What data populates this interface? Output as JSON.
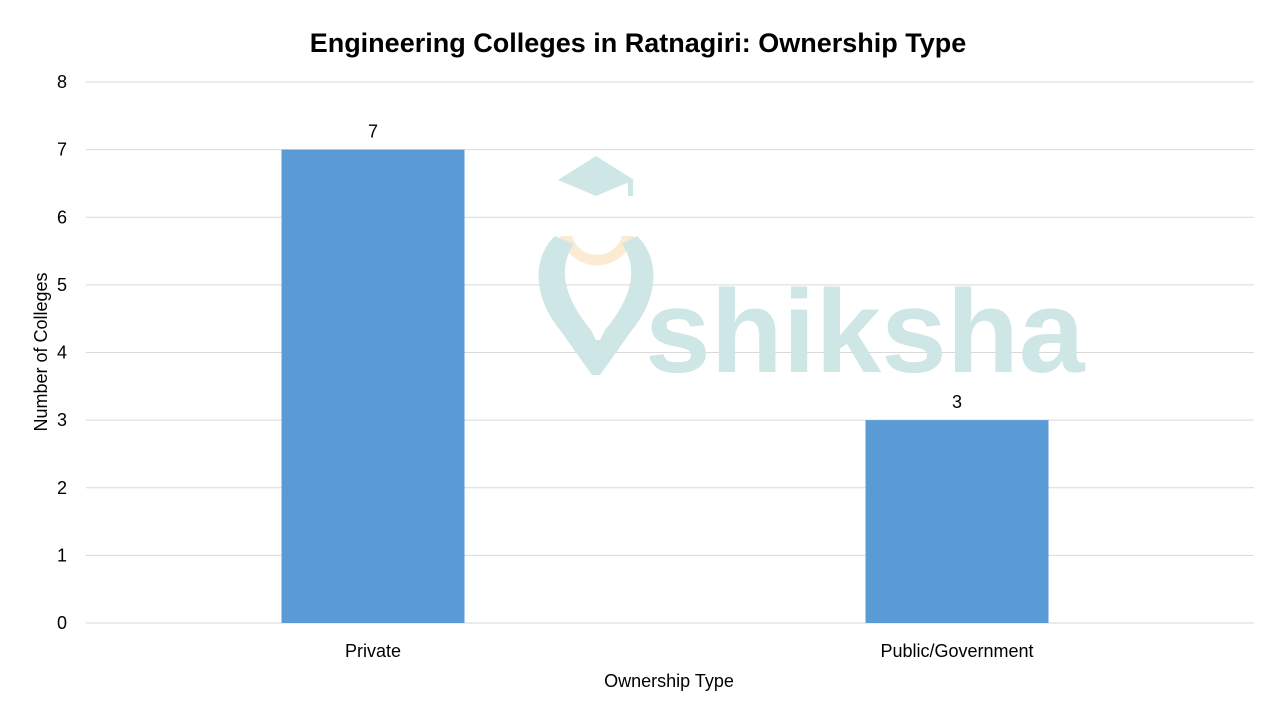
{
  "chart_data": {
    "type": "bar",
    "title": "Engineering Colleges in Ratnagiri: Ownership Type",
    "xlabel": "Ownership Type",
    "ylabel": "Number of Colleges",
    "categories": [
      "Private",
      "Public/Government"
    ],
    "values": [
      7,
      3
    ],
    "data_labels": [
      "7",
      "3"
    ],
    "ylim": [
      0,
      8
    ],
    "yticks": [
      0,
      1,
      2,
      3,
      4,
      5,
      6,
      7,
      8
    ],
    "grid": true,
    "legend": "none",
    "colors": {
      "bar": "#5B9BD5",
      "grid": "#D9D9D9",
      "watermark": "#CFE6E6",
      "watermark_accent": "#FCEBD3"
    }
  },
  "watermark": {
    "text": "shiksha"
  }
}
